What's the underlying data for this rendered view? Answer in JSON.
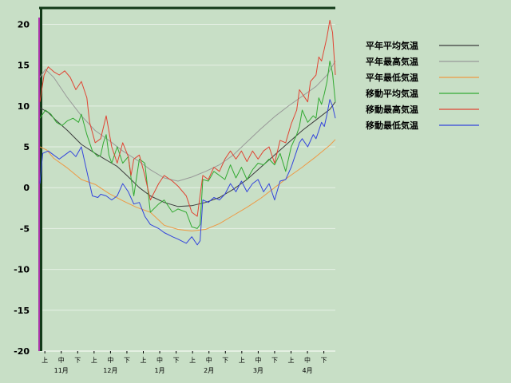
{
  "chart_data": {
    "type": "line",
    "ylim": [
      -20,
      22
    ],
    "yticks": [
      20,
      15,
      10,
      5,
      0,
      -5,
      -10,
      -15,
      -20
    ],
    "grid": true,
    "legend_placement": "top-right",
    "x_start": "11-01",
    "x_end": "04-30",
    "xtick_labels": [
      "上",
      "中",
      "下",
      "上",
      "中",
      "下",
      "上",
      "中",
      "下",
      "上",
      "中",
      "下",
      "上",
      "中",
      "下",
      "上",
      "中",
      "下"
    ],
    "month_labels": [
      "11月",
      "12月",
      "1月",
      "2月",
      "3月",
      "4月"
    ],
    "series": [
      {
        "name": "平年平均気温",
        "color": "#3c3c3c",
        "width": 1,
        "values": [
          [
            0,
            9.8
          ],
          [
            6,
            9.2
          ],
          [
            12,
            8.2
          ],
          [
            20,
            7.0
          ],
          [
            30,
            5.3
          ],
          [
            40,
            4.2
          ],
          [
            50,
            3.2
          ],
          [
            56,
            2.6
          ],
          [
            63,
            1.5
          ],
          [
            72,
            0
          ],
          [
            80,
            -1.0
          ],
          [
            90,
            -1.8
          ],
          [
            100,
            -2.3
          ],
          [
            110,
            -2.2
          ],
          [
            120,
            -1.8
          ],
          [
            130,
            -1.2
          ],
          [
            140,
            -0.2
          ],
          [
            150,
            1.0
          ],
          [
            160,
            2.5
          ],
          [
            170,
            4.0
          ],
          [
            180,
            5.5
          ],
          [
            190,
            7.0
          ],
          [
            200,
            8.3
          ],
          [
            210,
            9.6
          ],
          [
            214,
            10.5
          ]
        ]
      },
      {
        "name": "平年最高気温",
        "color": "#999999",
        "width": 1,
        "values": [
          [
            0,
            13.5
          ],
          [
            4,
            14.5
          ],
          [
            10,
            13.5
          ],
          [
            20,
            11.0
          ],
          [
            30,
            8.8
          ],
          [
            40,
            7.0
          ],
          [
            50,
            5.8
          ],
          [
            60,
            4.5
          ],
          [
            72,
            3.2
          ],
          [
            80,
            2.2
          ],
          [
            90,
            1.2
          ],
          [
            100,
            0.8
          ],
          [
            110,
            1.3
          ],
          [
            120,
            2.0
          ],
          [
            130,
            2.8
          ],
          [
            140,
            4.0
          ],
          [
            150,
            5.6
          ],
          [
            160,
            7.2
          ],
          [
            170,
            8.7
          ],
          [
            180,
            10.0
          ],
          [
            190,
            11.2
          ],
          [
            200,
            12.4
          ],
          [
            208,
            13.8
          ],
          [
            214,
            15.5
          ]
        ]
      },
      {
        "name": "平年最低気温",
        "color": "#ee9944",
        "width": 1,
        "values": [
          [
            0,
            5.0
          ],
          [
            5,
            4.6
          ],
          [
            10,
            3.6
          ],
          [
            20,
            2.4
          ],
          [
            30,
            1.0
          ],
          [
            40,
            0.4
          ],
          [
            50,
            -0.7
          ],
          [
            60,
            -1.6
          ],
          [
            70,
            -2.4
          ],
          [
            80,
            -3.0
          ],
          [
            90,
            -4.6
          ],
          [
            100,
            -5.1
          ],
          [
            110,
            -5.3
          ],
          [
            120,
            -5.1
          ],
          [
            130,
            -4.4
          ],
          [
            140,
            -3.4
          ],
          [
            150,
            -2.4
          ],
          [
            160,
            -1.3
          ],
          [
            170,
            0.0
          ],
          [
            180,
            1.3
          ],
          [
            190,
            2.5
          ],
          [
            200,
            3.8
          ],
          [
            210,
            5.2
          ],
          [
            214,
            5.9
          ]
        ]
      },
      {
        "name": "移動平均気温",
        "color": "#33aa33",
        "width": 1,
        "values": [
          [
            0,
            8.5
          ],
          [
            4,
            9.5
          ],
          [
            8,
            9.0
          ],
          [
            12,
            8.0
          ],
          [
            16,
            7.6
          ],
          [
            20,
            8.2
          ],
          [
            24,
            8.5
          ],
          [
            28,
            8.0
          ],
          [
            30,
            9.0
          ],
          [
            34,
            6.5
          ],
          [
            38,
            4.5
          ],
          [
            42,
            3.8
          ],
          [
            44,
            4.0
          ],
          [
            46,
            5.5
          ],
          [
            48,
            6.5
          ],
          [
            50,
            4.0
          ],
          [
            52,
            3.0
          ],
          [
            56,
            5.0
          ],
          [
            60,
            3.0
          ],
          [
            64,
            3.8
          ],
          [
            66,
            1.2
          ],
          [
            68,
            -1.0
          ],
          [
            72,
            3.5
          ],
          [
            76,
            3.0
          ],
          [
            80,
            -3.0
          ],
          [
            86,
            -2.0
          ],
          [
            90,
            -1.5
          ],
          [
            96,
            -3.0
          ],
          [
            100,
            -2.6
          ],
          [
            106,
            -3.0
          ],
          [
            110,
            -4.8
          ],
          [
            114,
            -5.0
          ],
          [
            116,
            -4.5
          ],
          [
            118,
            1.0
          ],
          [
            122,
            0.8
          ],
          [
            126,
            2.0
          ],
          [
            130,
            1.5
          ],
          [
            134,
            1.0
          ],
          [
            138,
            2.8
          ],
          [
            142,
            1.2
          ],
          [
            146,
            2.5
          ],
          [
            150,
            1.0
          ],
          [
            154,
            2.2
          ],
          [
            158,
            3.0
          ],
          [
            162,
            2.8
          ],
          [
            166,
            3.5
          ],
          [
            170,
            2.8
          ],
          [
            174,
            4.2
          ],
          [
            178,
            2.0
          ],
          [
            182,
            5.0
          ],
          [
            186,
            6.5
          ],
          [
            188,
            7.5
          ],
          [
            190,
            9.5
          ],
          [
            194,
            8.0
          ],
          [
            198,
            8.8
          ],
          [
            200,
            8.5
          ],
          [
            202,
            11.0
          ],
          [
            204,
            10.2
          ],
          [
            206,
            11.5
          ],
          [
            208,
            13.0
          ],
          [
            210,
            15.5
          ],
          [
            212,
            14.0
          ],
          [
            214,
            10.5
          ]
        ]
      },
      {
        "name": "移動最高気温",
        "color": "#e04433",
        "width": 1,
        "values": [
          [
            0,
            10.5
          ],
          [
            3,
            13.8
          ],
          [
            6,
            14.8
          ],
          [
            10,
            14.2
          ],
          [
            14,
            13.8
          ],
          [
            18,
            14.3
          ],
          [
            22,
            13.5
          ],
          [
            26,
            12.0
          ],
          [
            30,
            13.0
          ],
          [
            34,
            11.0
          ],
          [
            36,
            8.0
          ],
          [
            40,
            5.5
          ],
          [
            44,
            6.0
          ],
          [
            48,
            8.8
          ],
          [
            52,
            5.0
          ],
          [
            56,
            3.0
          ],
          [
            60,
            5.5
          ],
          [
            64,
            3.8
          ],
          [
            66,
            1.5
          ],
          [
            68,
            3.5
          ],
          [
            72,
            4.0
          ],
          [
            76,
            1.5
          ],
          [
            80,
            -1.5
          ],
          [
            86,
            0.5
          ],
          [
            90,
            1.5
          ],
          [
            96,
            0.8
          ],
          [
            100,
            0.2
          ],
          [
            106,
            -1.0
          ],
          [
            110,
            -3.0
          ],
          [
            114,
            -3.5
          ],
          [
            118,
            1.5
          ],
          [
            122,
            1.0
          ],
          [
            126,
            2.5
          ],
          [
            130,
            2.0
          ],
          [
            134,
            3.5
          ],
          [
            138,
            4.5
          ],
          [
            142,
            3.5
          ],
          [
            146,
            4.5
          ],
          [
            150,
            3.2
          ],
          [
            154,
            4.5
          ],
          [
            158,
            3.5
          ],
          [
            162,
            4.5
          ],
          [
            166,
            5.0
          ],
          [
            170,
            3.0
          ],
          [
            174,
            5.8
          ],
          [
            178,
            5.5
          ],
          [
            182,
            7.8
          ],
          [
            186,
            9.5
          ],
          [
            188,
            12.0
          ],
          [
            190,
            11.5
          ],
          [
            194,
            10.5
          ],
          [
            196,
            13.0
          ],
          [
            200,
            13.8
          ],
          [
            202,
            16.0
          ],
          [
            204,
            15.5
          ],
          [
            206,
            17.0
          ],
          [
            208,
            18.5
          ],
          [
            210,
            20.5
          ],
          [
            212,
            19.0
          ],
          [
            214,
            13.8
          ]
        ]
      },
      {
        "name": "移動最低気温",
        "color": "#3344dd",
        "width": 1,
        "values": [
          [
            0,
            0.5
          ],
          [
            2,
            4.2
          ],
          [
            6,
            4.5
          ],
          [
            10,
            4.0
          ],
          [
            14,
            3.5
          ],
          [
            18,
            4.0
          ],
          [
            22,
            4.5
          ],
          [
            26,
            3.8
          ],
          [
            30,
            5.0
          ],
          [
            34,
            2.0
          ],
          [
            38,
            -1.0
          ],
          [
            42,
            -1.2
          ],
          [
            44,
            -0.8
          ],
          [
            48,
            -1.0
          ],
          [
            52,
            -1.5
          ],
          [
            56,
            -1.0
          ],
          [
            60,
            0.5
          ],
          [
            64,
            -0.5
          ],
          [
            68,
            -2.0
          ],
          [
            72,
            -1.8
          ],
          [
            76,
            -3.5
          ],
          [
            80,
            -4.5
          ],
          [
            86,
            -5.0
          ],
          [
            90,
            -5.5
          ],
          [
            96,
            -6.0
          ],
          [
            100,
            -6.3
          ],
          [
            106,
            -6.8
          ],
          [
            110,
            -6.0
          ],
          [
            114,
            -7.0
          ],
          [
            116,
            -6.5
          ],
          [
            118,
            -1.5
          ],
          [
            122,
            -1.8
          ],
          [
            126,
            -1.2
          ],
          [
            130,
            -1.5
          ],
          [
            134,
            -0.8
          ],
          [
            138,
            0.5
          ],
          [
            142,
            -0.5
          ],
          [
            146,
            0.8
          ],
          [
            150,
            -0.5
          ],
          [
            154,
            0.5
          ],
          [
            158,
            1.0
          ],
          [
            162,
            -0.5
          ],
          [
            166,
            0.5
          ],
          [
            170,
            -1.5
          ],
          [
            174,
            0.8
          ],
          [
            178,
            1.0
          ],
          [
            182,
            2.5
          ],
          [
            186,
            4.5
          ],
          [
            188,
            5.5
          ],
          [
            190,
            6.0
          ],
          [
            194,
            5.0
          ],
          [
            198,
            6.5
          ],
          [
            200,
            6.0
          ],
          [
            202,
            7.0
          ],
          [
            204,
            8.0
          ],
          [
            206,
            7.5
          ],
          [
            208,
            9.0
          ],
          [
            210,
            10.8
          ],
          [
            212,
            10.0
          ],
          [
            214,
            8.5
          ]
        ]
      }
    ]
  }
}
